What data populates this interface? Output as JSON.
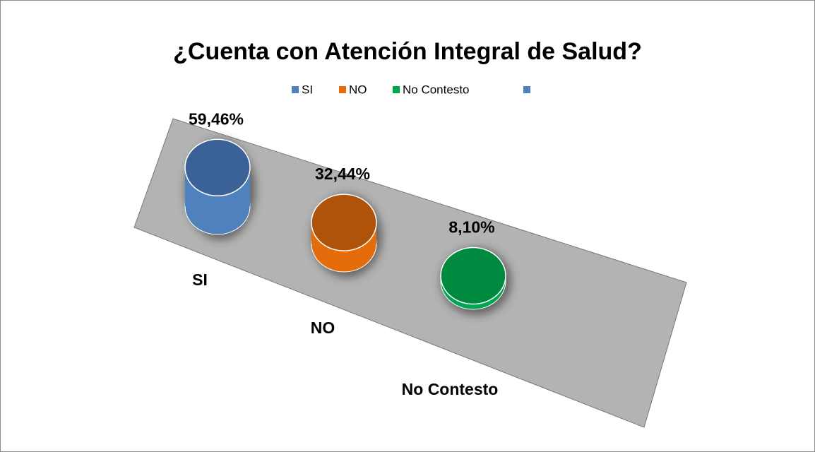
{
  "chart_data": {
    "type": "bar",
    "title": "¿Cuenta con Atención Integral de Salud?",
    "categories": [
      "SI",
      "NO",
      "No Contesto"
    ],
    "values": [
      59.46,
      32.44,
      8.1
    ],
    "value_labels": [
      "59,46%",
      "32,44%",
      "8,10%"
    ],
    "colors": [
      "#4f81bd",
      "#e46c0a",
      "#00a550"
    ],
    "top_colors": [
      "#3b6296",
      "#b0530a",
      "#008a40"
    ]
  }
}
